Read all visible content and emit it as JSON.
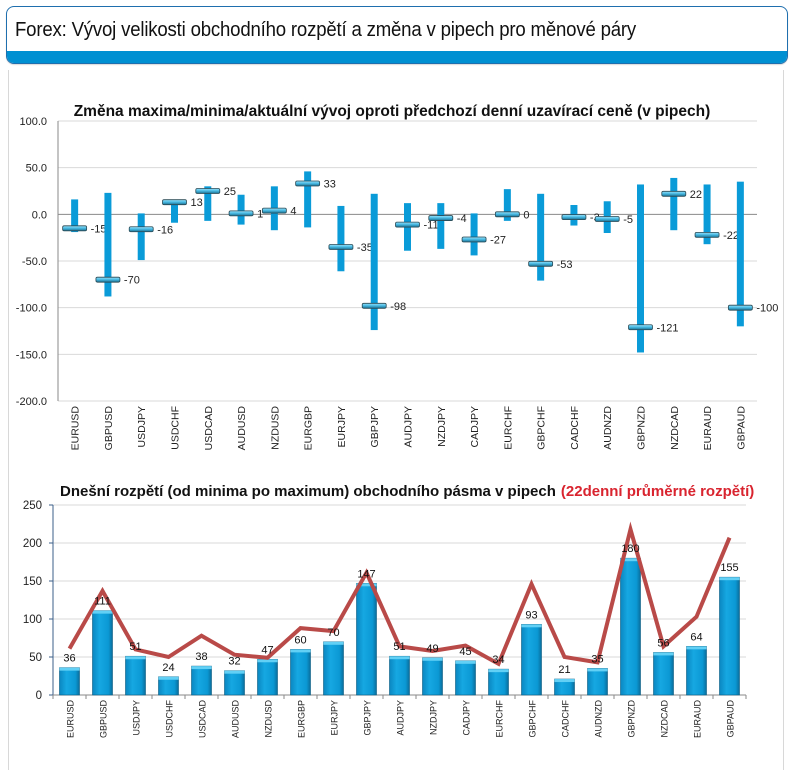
{
  "header": {
    "title": "Forex: Vývoj velikosti obchodního rozpětí a změna v pipech pro měnové páry"
  },
  "colors": {
    "accent": "#0090d2",
    "bar": "#0a9bd8",
    "line": "#b94a48",
    "red_title": "#d9242f"
  },
  "chart_data": [
    {
      "type": "stock",
      "title": "Změna maxima/minima/aktuální vývoj oproti předchozí denní uzavírací ceně (v pipech)",
      "xlabel": "",
      "ylabel": "",
      "ylim": [
        -200,
        100
      ],
      "yticks": [
        "100.0",
        "50.0",
        "0.0",
        "-50.0",
        "-100.0",
        "-150.0",
        "-200.0"
      ],
      "ytick_values": [
        100,
        50,
        0,
        -50,
        -100,
        -150,
        -200
      ],
      "grid": true,
      "categories": [
        "EURUSD",
        "GBPUSD",
        "USDJPY",
        "USDCHF",
        "USDCAD",
        "AUDUSD",
        "NZDUSD",
        "EURGBP",
        "EURJPY",
        "GBPJPY",
        "AUDJPY",
        "NZDJPY",
        "CADJPY",
        "EURCHF",
        "GBPCHF",
        "CADCHF",
        "AUDNZD",
        "GBPNZD",
        "NZDCAD",
        "EURAUD",
        "GBPAUD"
      ],
      "series": [
        {
          "name": "high",
          "values": [
            16,
            23,
            1,
            14,
            30,
            21,
            30,
            46,
            9,
            22,
            12,
            12,
            1,
            27,
            22,
            10,
            14,
            32,
            39,
            32,
            35
          ]
        },
        {
          "name": "low",
          "values": [
            -19,
            -88,
            -49,
            -9,
            -7,
            -11,
            -17,
            -14,
            -61,
            -124,
            -39,
            -37,
            -44,
            -7,
            -71,
            -12,
            -20,
            -148,
            -17,
            -32,
            -120
          ]
        },
        {
          "name": "current",
          "values": [
            -15,
            -70,
            -16,
            13,
            25,
            1,
            4,
            33,
            -35,
            -98,
            -11,
            -4,
            -27,
            0,
            -53,
            -3,
            -5,
            -121,
            22,
            -22,
            -100
          ]
        }
      ],
      "data_labels": [
        "-15",
        "-70",
        "-16",
        "13",
        "25",
        "1",
        "4",
        "33",
        "-35",
        "-98",
        "-11",
        "-4",
        "-27",
        "0",
        "-53",
        "-3",
        "-5",
        "-121",
        "22",
        "-22",
        "-100"
      ]
    },
    {
      "type": "bar",
      "title": "Dnešní rozpětí (od minima po maximum) obchodního pásma v pipech",
      "title_highlight": "(22denní průměrné rozpětí)",
      "xlabel": "",
      "ylabel": "",
      "ylim": [
        0,
        250
      ],
      "yticks": [
        "250",
        "200",
        "150",
        "100",
        "50",
        "0"
      ],
      "ytick_values": [
        250,
        200,
        150,
        100,
        50,
        0
      ],
      "grid": true,
      "categories": [
        "EURUSD",
        "GBPUSD",
        "USDJPY",
        "USDCHF",
        "USDCAD",
        "AUDUSD",
        "NZDUSD",
        "EURGBP",
        "EURJPY",
        "GBPJPY",
        "AUDJPY",
        "NZDJPY",
        "CADJPY",
        "EURCHF",
        "GBPCHF",
        "CADCHF",
        "AUDNZD",
        "GBPNZD",
        "NZDCAD",
        "EURAUD",
        "GBPAUD"
      ],
      "series": [
        {
          "name": "Dnešní rozpětí",
          "type": "bar",
          "values": [
            36,
            111,
            51,
            24,
            38,
            32,
            47,
            60,
            70,
            147,
            51,
            49,
            45,
            34,
            93,
            21,
            35,
            180,
            56,
            64,
            155
          ]
        },
        {
          "name": "22denní průměrné rozpětí",
          "type": "line",
          "values": [
            61,
            137,
            60,
            50,
            78,
            53,
            49,
            88,
            84,
            161,
            64,
            58,
            65,
            41,
            146,
            50,
            43,
            218,
            64,
            103,
            207
          ]
        }
      ],
      "data_labels": [
        "36",
        "111",
        "51",
        "24",
        "38",
        "32",
        "47",
        "60",
        "70",
        "147",
        "51",
        "49",
        "45",
        "34",
        "93",
        "21",
        "35",
        "180",
        "56",
        "64",
        "155"
      ]
    }
  ]
}
